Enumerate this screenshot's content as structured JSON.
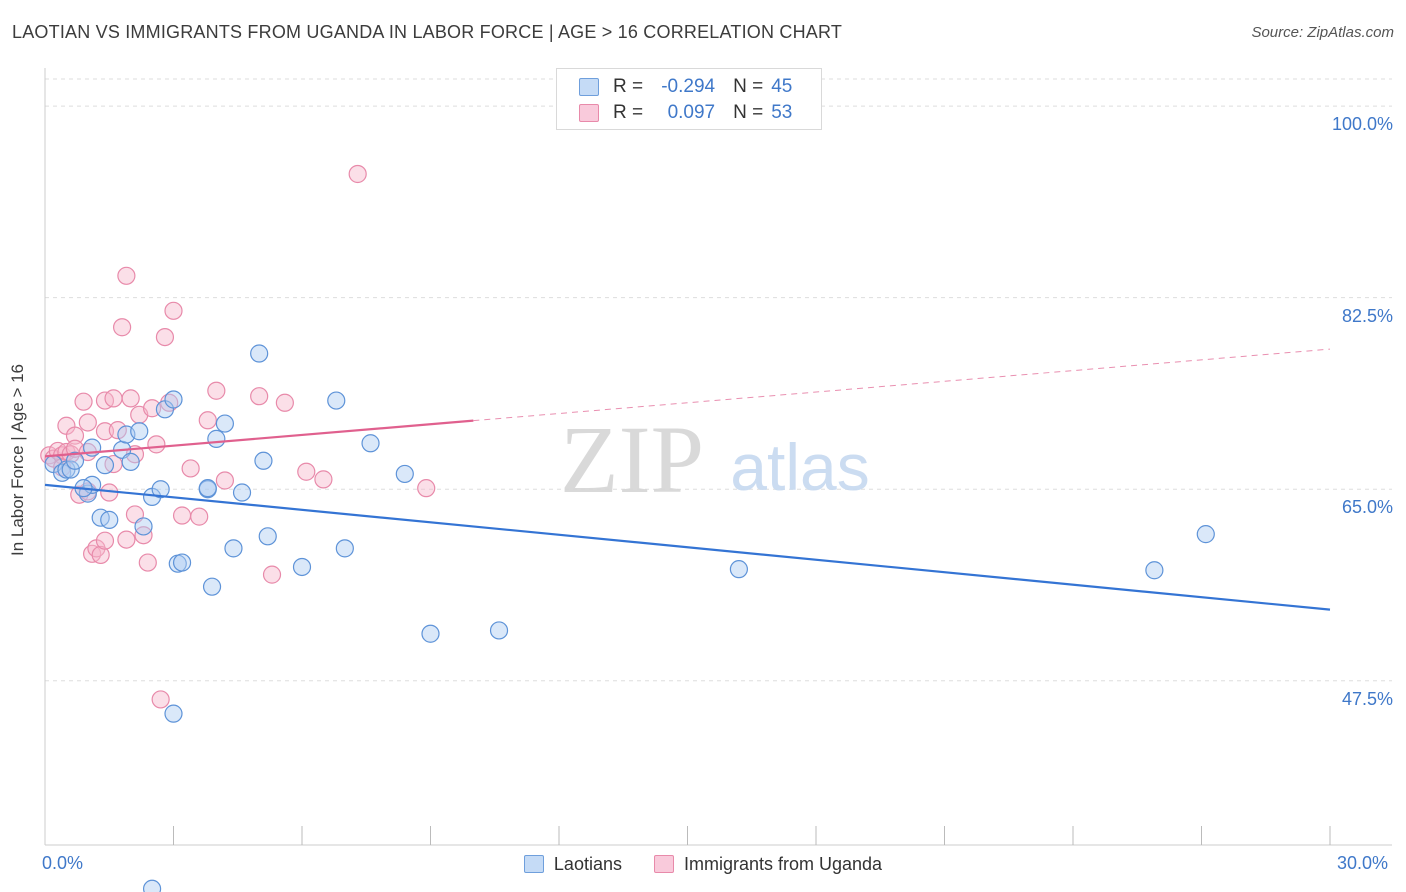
{
  "title": "LAOTIAN VS IMMIGRANTS FROM UGANDA IN LABOR FORCE | AGE > 16 CORRELATION CHART",
  "source": "Source: ZipAtlas.com",
  "watermark": {
    "zip": "ZIP",
    "atlas": "atlas"
  },
  "colors": {
    "blue_fill": "#aecbf2",
    "blue_stroke": "#5e93d8",
    "blue_line": "#3474d4",
    "pink_fill": "#f6b8cd",
    "pink_stroke": "#e88aaa",
    "pink_line": "#e0608e",
    "axis_text": "#3f78c9",
    "grid": "#dddddd"
  },
  "legend_top": {
    "rows": [
      {
        "r_label": "R =",
        "r_value": "-0.294",
        "n_label": "N =",
        "n_value": "45"
      },
      {
        "r_label": "R =",
        "r_value": "0.097",
        "n_label": "N =",
        "n_value": "53"
      }
    ]
  },
  "chart_data": {
    "type": "scatter",
    "title": "LAOTIAN VS IMMIGRANTS FROM UGANDA IN LABOR FORCE | AGE > 16 CORRELATION CHART",
    "xlabel": "",
    "ylabel": "In Labor Force | Age > 16",
    "xlim": [
      0,
      30
    ],
    "ylim": [
      32.5,
      103.3
    ],
    "x_tick_labels": [
      "0.0%",
      "30.0%"
    ],
    "y_ticks": [
      47.5,
      65.0,
      82.5,
      100.0
    ],
    "y_tick_labels": [
      "47.5%",
      "65.0%",
      "82.5%",
      "100.0%"
    ],
    "grid": true,
    "legend_position": "bottom",
    "series": [
      {
        "name": "Laotians",
        "r": -0.294,
        "n": 45,
        "trend": {
          "x0": 0.0,
          "y0": 65.4,
          "x1": 30.0,
          "y1": 54.0,
          "solid_until": 30.0
        },
        "points": [
          [
            0.2,
            67.3
          ],
          [
            0.4,
            66.5
          ],
          [
            0.5,
            66.8
          ],
          [
            0.6,
            66.8
          ],
          [
            0.7,
            67.6
          ],
          [
            1.0,
            64.6
          ],
          [
            1.1,
            65.4
          ],
          [
            1.1,
            68.8
          ],
          [
            1.3,
            62.4
          ],
          [
            1.4,
            67.2
          ],
          [
            1.5,
            62.2
          ],
          [
            1.8,
            68.6
          ],
          [
            1.9,
            70.0
          ],
          [
            2.0,
            67.5
          ],
          [
            2.2,
            70.3
          ],
          [
            2.3,
            61.6
          ],
          [
            2.5,
            64.3
          ],
          [
            2.7,
            65.0
          ],
          [
            2.8,
            72.3
          ],
          [
            3.0,
            44.5
          ],
          [
            3.1,
            58.2
          ],
          [
            3.2,
            58.3
          ],
          [
            3.8,
            65.0
          ],
          [
            3.8,
            65.1
          ],
          [
            3.9,
            56.1
          ],
          [
            4.0,
            69.6
          ],
          [
            4.2,
            71.0
          ],
          [
            4.4,
            59.6
          ],
          [
            4.6,
            64.7
          ],
          [
            5.0,
            77.4
          ],
          [
            5.1,
            67.6
          ],
          [
            5.2,
            60.7
          ],
          [
            6.0,
            57.9
          ],
          [
            6.8,
            73.1
          ],
          [
            7.0,
            59.6
          ],
          [
            7.6,
            69.2
          ],
          [
            8.4,
            66.4
          ],
          [
            9.0,
            51.8
          ],
          [
            10.6,
            52.1
          ],
          [
            16.2,
            57.7
          ],
          [
            25.9,
            57.6
          ],
          [
            27.1,
            60.9
          ],
          [
            2.5,
            28.5
          ],
          [
            0.9,
            65.1
          ],
          [
            3.0,
            73.2
          ]
        ]
      },
      {
        "name": "Immigrants from Uganda",
        "r": 0.097,
        "n": 53,
        "trend": {
          "x0": 0.0,
          "y0": 68.0,
          "x1": 30.0,
          "y1": 77.8,
          "solid_until": 10.0
        },
        "points": [
          [
            0.1,
            68.1
          ],
          [
            0.2,
            67.8
          ],
          [
            0.3,
            68.5
          ],
          [
            0.4,
            68.1
          ],
          [
            0.5,
            68.4
          ],
          [
            0.5,
            70.8
          ],
          [
            0.6,
            68.2
          ],
          [
            0.7,
            69.9
          ],
          [
            0.7,
            68.7
          ],
          [
            0.8,
            64.5
          ],
          [
            0.9,
            73.0
          ],
          [
            1.0,
            68.4
          ],
          [
            1.0,
            71.1
          ],
          [
            1.1,
            59.1
          ],
          [
            1.2,
            59.6
          ],
          [
            1.3,
            59.0
          ],
          [
            1.4,
            70.3
          ],
          [
            1.4,
            73.1
          ],
          [
            1.5,
            64.7
          ],
          [
            1.6,
            73.3
          ],
          [
            1.6,
            67.3
          ],
          [
            1.7,
            70.4
          ],
          [
            1.8,
            79.8
          ],
          [
            1.9,
            60.4
          ],
          [
            2.0,
            73.3
          ],
          [
            2.1,
            68.2
          ],
          [
            2.2,
            71.8
          ],
          [
            2.3,
            60.8
          ],
          [
            2.4,
            58.3
          ],
          [
            2.5,
            72.4
          ],
          [
            2.6,
            69.1
          ],
          [
            2.8,
            78.9
          ],
          [
            2.9,
            72.9
          ],
          [
            3.0,
            81.3
          ],
          [
            3.2,
            62.6
          ],
          [
            3.4,
            66.9
          ],
          [
            3.6,
            62.5
          ],
          [
            3.8,
            71.3
          ],
          [
            4.0,
            74.0
          ],
          [
            4.2,
            65.8
          ],
          [
            5.0,
            73.5
          ],
          [
            5.3,
            57.2
          ],
          [
            5.6,
            72.9
          ],
          [
            6.1,
            66.6
          ],
          [
            6.5,
            65.9
          ],
          [
            7.3,
            93.8
          ],
          [
            8.9,
            65.1
          ],
          [
            2.7,
            45.8
          ],
          [
            1.9,
            84.5
          ],
          [
            1.4,
            60.3
          ],
          [
            0.4,
            67.0
          ],
          [
            2.1,
            62.7
          ],
          [
            1.0,
            64.8
          ]
        ]
      }
    ]
  },
  "x_axis": {
    "left_label": "0.0%",
    "right_label": "30.0%"
  },
  "legend_bottom": {
    "items": [
      "Laotians",
      "Immigrants from Uganda"
    ]
  }
}
